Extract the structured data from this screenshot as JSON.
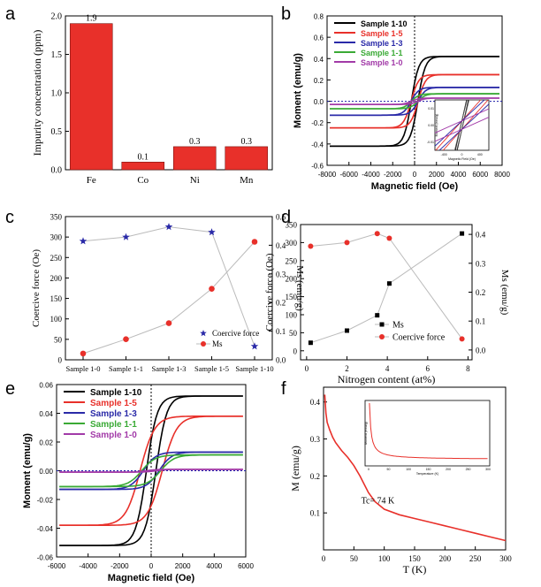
{
  "panel_labels": [
    "a",
    "b",
    "c",
    "d",
    "e",
    "f"
  ],
  "chart_data": [
    {
      "panel": "a",
      "type": "bar",
      "categories": [
        "Fe",
        "Co",
        "Ni",
        "Mn"
      ],
      "values": [
        1.9,
        0.1,
        0.3,
        0.3
      ],
      "data_labels": [
        "1.9",
        "0.1",
        "0.3",
        "0.3"
      ],
      "ylabel": "Impurity concentration (ppm)",
      "ylim": [
        0,
        2.0
      ],
      "yticks": [
        "0.0",
        "0.5",
        "1.0",
        "1.5",
        "2.0"
      ],
      "bar_color": "#e8302a"
    },
    {
      "panel": "b",
      "type": "line",
      "xlabel": "Magnetic field (Oe)",
      "ylabel": "Moment (emu/g)",
      "xlim": [
        -8000,
        8000
      ],
      "ylim": [
        -0.6,
        0.8
      ],
      "xticks": [
        "-8000",
        "-6000",
        "-4000",
        "-2000",
        "0",
        "2000",
        "4000",
        "6000",
        "8000"
      ],
      "yticks": [
        "-0.6",
        "-0.4",
        "-0.2",
        "0.0",
        "0.2",
        "0.4",
        "0.6",
        "0.8"
      ],
      "legend_position": "top-left",
      "series": [
        {
          "name": "Sample 1-10",
          "color": "#000000",
          "ms": 0.42,
          "hc": 300
        },
        {
          "name": "Sample 1-5",
          "color": "#e8302a",
          "ms": 0.25,
          "hc": 320
        },
        {
          "name": "Sample 1-3",
          "color": "#2a2aa8",
          "ms": 0.13,
          "hc": 320
        },
        {
          "name": "Sample 1-1",
          "color": "#3aaa35",
          "ms": 0.07,
          "hc": 300
        },
        {
          "name": "Sample 1-0",
          "color": "#a23aa8",
          "ms": 0.03,
          "hc": 290
        }
      ],
      "inset": {
        "xlabel": "Magnetic Field (Oe)",
        "ylabel": "Moment (emu/g)",
        "xticks": [
          "-400",
          "0",
          "400"
        ],
        "yticks": [
          "0.01",
          "0.00",
          "-0.01"
        ]
      }
    },
    {
      "panel": "c",
      "type": "line",
      "categories": [
        "Sample 1-0",
        "Sample 1-1",
        "Sample 1-3",
        "Sample 1-5",
        "Sample 1-10"
      ],
      "ylabel": "Coercive force (Oe)",
      "y2label": "Ms (emu/g)",
      "ylim": [
        0,
        350
      ],
      "y2lim": [
        0,
        0.5
      ],
      "yticks": [
        "0",
        "50",
        "100",
        "150",
        "200",
        "250",
        "300",
        "350"
      ],
      "y2ticks": [
        "0.0",
        "0.1",
        "0.2",
        "0.3",
        "0.4",
        "0.5"
      ],
      "legend_position": "bottom-right",
      "series": [
        {
          "name": "Coercive force",
          "color": "#2a2aa8",
          "axis": "left",
          "values": [
            290,
            300,
            325,
            312,
            33
          ]
        },
        {
          "name": "Ms",
          "color": "#e8302a",
          "axis": "right",
          "values": [
            0.022,
            0.072,
            0.128,
            0.248,
            0.412
          ]
        }
      ]
    },
    {
      "panel": "d",
      "type": "line",
      "xlabel": "Nitrogen content (at%)",
      "ylabel": "Coercive force (Oe)",
      "y2label": "Ms (emu/g)",
      "xlim": [
        -0.3,
        8.2
      ],
      "ylim": [
        -25,
        350
      ],
      "y2lim": [
        -0.034,
        0.434
      ],
      "xticks": [
        "0",
        "2",
        "4",
        "6",
        "8"
      ],
      "yticks": [
        "0",
        "50",
        "100",
        "150",
        "200",
        "250",
        "300",
        "350"
      ],
      "y2ticks": [
        "0.0",
        "0.1",
        "0.2",
        "0.3",
        "0.4"
      ],
      "legend_position": "bottom-right",
      "series": [
        {
          "name": "Ms",
          "color": "#000000",
          "axis": "right",
          "x": [
            0.2,
            2.0,
            3.5,
            4.1,
            7.7
          ],
          "values": [
            0.025,
            0.067,
            0.12,
            0.23,
            0.403
          ]
        },
        {
          "name": "Coercive force",
          "color": "#e8302a",
          "axis": "left",
          "x": [
            0.2,
            2.0,
            3.5,
            4.1,
            7.7
          ],
          "values": [
            290,
            300,
            325,
            312,
            33
          ]
        }
      ]
    },
    {
      "panel": "e",
      "type": "line",
      "xlabel": "Magnetic field (Oe)",
      "ylabel": "Moment (emu/g)",
      "xlim": [
        -6000,
        6000
      ],
      "ylim": [
        -0.06,
        0.06
      ],
      "xticks": [
        "-6000",
        "-4000",
        "-2000",
        "0",
        "2000",
        "4000",
        "6000"
      ],
      "yticks": [
        "-0.06",
        "-0.04",
        "-0.02",
        "0.00",
        "0.02",
        "0.04",
        "0.06"
      ],
      "legend_position": "top-left",
      "series": [
        {
          "name": "Sample 1-10",
          "color": "#000000",
          "ms": 0.052,
          "hc": 300
        },
        {
          "name": "Sample 1-5",
          "color": "#e8302a",
          "ms": 0.038,
          "hc": 700
        },
        {
          "name": "Sample 1-3",
          "color": "#2a2aa8",
          "ms": 0.013,
          "hc": 500
        },
        {
          "name": "Sample 1-1",
          "color": "#3aaa35",
          "ms": 0.011,
          "hc": 600
        },
        {
          "name": "Sample 1-0",
          "color": "#a23aa8",
          "ms": 0.001,
          "hc": 300
        }
      ]
    },
    {
      "panel": "f",
      "type": "line",
      "xlabel": "T (K)",
      "ylabel": "M (emu/g)",
      "xlim": [
        0,
        300
      ],
      "ylim": [
        0,
        0.44
      ],
      "xticks": [
        "0",
        "50",
        "100",
        "150",
        "200",
        "250",
        "300"
      ],
      "yticks": [
        "0.1",
        "0.2",
        "0.3",
        "0.4"
      ],
      "annotation": "Tc= 74 K",
      "series": [
        {
          "name": "",
          "color": "#e8302a",
          "x": [
            2,
            4,
            6,
            10,
            15,
            20,
            30,
            40,
            50,
            60,
            74,
            85,
            100,
            125,
            150,
            175,
            200,
            225,
            250,
            275,
            300
          ],
          "values": [
            0.42,
            0.37,
            0.345,
            0.325,
            0.305,
            0.29,
            0.268,
            0.25,
            0.228,
            0.2,
            0.155,
            0.13,
            0.11,
            0.095,
            0.085,
            0.075,
            0.065,
            0.055,
            0.045,
            0.035,
            0.025
          ]
        }
      ],
      "inset": {
        "xlabel": "Temperature (K)",
        "ylabel": "Moment (emu/g)",
        "xticks": [
          "0",
          "50",
          "100",
          "150",
          "200",
          "250",
          "300"
        ]
      }
    }
  ]
}
